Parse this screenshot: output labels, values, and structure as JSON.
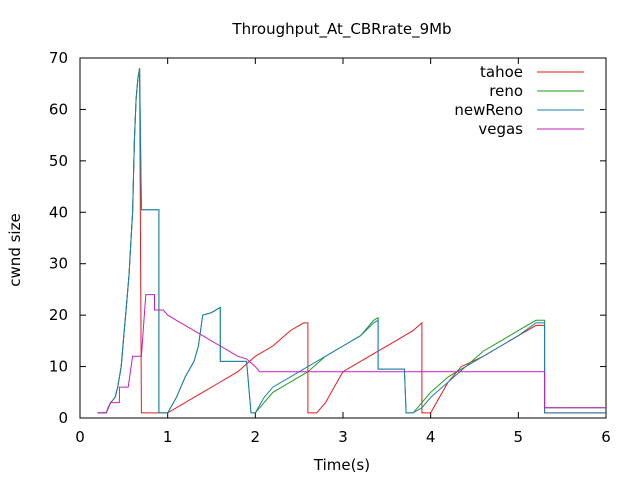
{
  "chart_data": {
    "type": "line",
    "title": "Throughput_At_CBRrate_9Mb",
    "xlabel": "Time(s)",
    "ylabel": "cwnd size",
    "xlim": [
      0,
      6
    ],
    "ylim": [
      0,
      70
    ],
    "xticks": [
      0,
      1,
      2,
      3,
      4,
      5,
      6
    ],
    "yticks": [
      0,
      10,
      20,
      30,
      40,
      50,
      60,
      70
    ],
    "legend_position": "top-right",
    "grid": false,
    "series": [
      {
        "name": "tahoe",
        "color": "#e41a1c",
        "points": [
          [
            0.2,
            1
          ],
          [
            0.3,
            1
          ],
          [
            0.32,
            2
          ],
          [
            0.35,
            3
          ],
          [
            0.4,
            4
          ],
          [
            0.43,
            6
          ],
          [
            0.47,
            10
          ],
          [
            0.5,
            16
          ],
          [
            0.53,
            22
          ],
          [
            0.56,
            28
          ],
          [
            0.58,
            34
          ],
          [
            0.6,
            40
          ],
          [
            0.62,
            54
          ],
          [
            0.64,
            62
          ],
          [
            0.66,
            66
          ],
          [
            0.68,
            68
          ],
          [
            0.7,
            1
          ],
          [
            0.9,
            1
          ],
          [
            1.0,
            1
          ],
          [
            1.2,
            3
          ],
          [
            1.4,
            5
          ],
          [
            1.6,
            7
          ],
          [
            1.8,
            9
          ],
          [
            2.0,
            12
          ],
          [
            2.2,
            14
          ],
          [
            2.4,
            17
          ],
          [
            2.55,
            18.5
          ],
          [
            2.6,
            18.5
          ],
          [
            2.6,
            1
          ],
          [
            2.7,
            1
          ],
          [
            2.8,
            3
          ],
          [
            2.9,
            6
          ],
          [
            3.0,
            9
          ],
          [
            3.2,
            11
          ],
          [
            3.4,
            13
          ],
          [
            3.6,
            15
          ],
          [
            3.8,
            17
          ],
          [
            3.9,
            18.5
          ],
          [
            3.9,
            1
          ],
          [
            4.0,
            1
          ],
          [
            4.1,
            4
          ],
          [
            4.2,
            7
          ],
          [
            4.35,
            10
          ],
          [
            4.6,
            12
          ],
          [
            4.8,
            14
          ],
          [
            5.0,
            16
          ],
          [
            5.2,
            18
          ],
          [
            5.3,
            18
          ],
          [
            5.3,
            1
          ],
          [
            6.0,
            1
          ]
        ]
      },
      {
        "name": "reno",
        "color": "#1a9e1a",
        "points": [
          [
            0.2,
            1
          ],
          [
            0.3,
            1
          ],
          [
            0.32,
            2
          ],
          [
            0.35,
            3
          ],
          [
            0.4,
            4
          ],
          [
            0.43,
            6
          ],
          [
            0.47,
            10
          ],
          [
            0.5,
            16
          ],
          [
            0.53,
            22
          ],
          [
            0.56,
            28
          ],
          [
            0.58,
            34
          ],
          [
            0.6,
            40
          ],
          [
            0.62,
            54
          ],
          [
            0.64,
            62
          ],
          [
            0.66,
            66
          ],
          [
            0.68,
            68
          ],
          [
            0.7,
            40.5
          ],
          [
            0.9,
            40.5
          ],
          [
            0.9,
            1
          ],
          [
            1.0,
            1
          ],
          [
            1.1,
            4
          ],
          [
            1.2,
            8
          ],
          [
            1.3,
            11
          ],
          [
            1.35,
            14
          ],
          [
            1.4,
            20
          ],
          [
            1.5,
            20.5
          ],
          [
            1.6,
            21.5
          ],
          [
            1.6,
            11
          ],
          [
            1.9,
            11
          ],
          [
            1.95,
            1
          ],
          [
            2.0,
            1
          ],
          [
            2.1,
            3
          ],
          [
            2.2,
            5
          ],
          [
            2.4,
            7
          ],
          [
            2.6,
            9
          ],
          [
            2.8,
            12
          ],
          [
            3.0,
            14
          ],
          [
            3.2,
            16
          ],
          [
            3.35,
            19
          ],
          [
            3.4,
            19.5
          ],
          [
            3.4,
            9.5
          ],
          [
            3.7,
            9.5
          ],
          [
            3.72,
            1
          ],
          [
            3.8,
            1
          ],
          [
            3.9,
            3
          ],
          [
            4.0,
            5
          ],
          [
            4.2,
            8
          ],
          [
            4.4,
            10
          ],
          [
            4.6,
            13
          ],
          [
            4.8,
            15
          ],
          [
            5.0,
            17
          ],
          [
            5.2,
            19
          ],
          [
            5.3,
            19
          ],
          [
            5.3,
            2
          ],
          [
            6.0,
            2
          ]
        ]
      },
      {
        "name": "newReno",
        "color": "#1f7fb0",
        "points": [
          [
            0.2,
            1
          ],
          [
            0.3,
            1
          ],
          [
            0.32,
            2
          ],
          [
            0.35,
            3
          ],
          [
            0.4,
            4
          ],
          [
            0.43,
            6
          ],
          [
            0.47,
            10
          ],
          [
            0.5,
            16
          ],
          [
            0.53,
            22
          ],
          [
            0.56,
            28
          ],
          [
            0.58,
            34
          ],
          [
            0.6,
            40
          ],
          [
            0.62,
            54
          ],
          [
            0.64,
            62
          ],
          [
            0.66,
            66
          ],
          [
            0.68,
            68
          ],
          [
            0.7,
            40.5
          ],
          [
            0.9,
            40.5
          ],
          [
            0.9,
            1
          ],
          [
            1.0,
            1
          ],
          [
            1.1,
            4
          ],
          [
            1.2,
            8
          ],
          [
            1.3,
            11
          ],
          [
            1.35,
            14
          ],
          [
            1.4,
            20
          ],
          [
            1.5,
            20.5
          ],
          [
            1.6,
            21.5
          ],
          [
            1.6,
            11
          ],
          [
            1.9,
            11
          ],
          [
            1.95,
            1
          ],
          [
            2.0,
            1
          ],
          [
            2.1,
            4
          ],
          [
            2.2,
            6
          ],
          [
            2.4,
            8
          ],
          [
            2.6,
            10
          ],
          [
            2.8,
            12
          ],
          [
            3.0,
            14
          ],
          [
            3.2,
            16
          ],
          [
            3.35,
            18.5
          ],
          [
            3.4,
            19
          ],
          [
            3.4,
            9.5
          ],
          [
            3.7,
            9.5
          ],
          [
            3.72,
            1
          ],
          [
            3.8,
            1
          ],
          [
            3.9,
            2
          ],
          [
            4.0,
            4
          ],
          [
            4.2,
            7
          ],
          [
            4.4,
            10
          ],
          [
            4.6,
            12
          ],
          [
            4.8,
            14
          ],
          [
            5.0,
            16
          ],
          [
            5.2,
            18.5
          ],
          [
            5.3,
            18.5
          ],
          [
            5.3,
            1
          ],
          [
            6.0,
            1
          ]
        ]
      },
      {
        "name": "vegas",
        "color": "#c020c0",
        "points": [
          [
            0.2,
            1
          ],
          [
            0.3,
            1
          ],
          [
            0.35,
            3
          ],
          [
            0.45,
            3
          ],
          [
            0.45,
            6
          ],
          [
            0.55,
            6
          ],
          [
            0.6,
            12
          ],
          [
            0.7,
            12
          ],
          [
            0.75,
            24
          ],
          [
            0.85,
            24
          ],
          [
            0.85,
            21
          ],
          [
            0.95,
            21
          ],
          [
            1.0,
            20
          ],
          [
            1.1,
            19
          ],
          [
            1.2,
            18
          ],
          [
            1.3,
            17
          ],
          [
            1.4,
            16
          ],
          [
            1.5,
            15
          ],
          [
            1.6,
            14
          ],
          [
            1.7,
            13
          ],
          [
            1.8,
            12
          ],
          [
            1.9,
            11.5
          ],
          [
            2.0,
            10
          ],
          [
            2.05,
            9
          ],
          [
            5.3,
            9
          ],
          [
            5.3,
            2
          ],
          [
            6.0,
            2
          ]
        ]
      }
    ]
  }
}
